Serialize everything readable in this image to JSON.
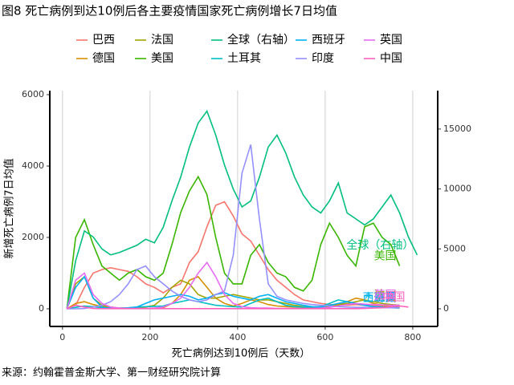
{
  "chart_data": {
    "type": "line",
    "title": "图8 死亡病例到达10例后各主要疫情国家死亡病例增长7日均值",
    "x_label": "死亡病例达到10例后（天数）",
    "y_label": "新增死亡病例7日均值",
    "source": "来源：约翰霍普金斯大学、第一财经研究院计算",
    "x": [
      10,
      30,
      50,
      70,
      90,
      110,
      130,
      150,
      170,
      190,
      210,
      230,
      250,
      270,
      290,
      310,
      330,
      350,
      370,
      390,
      410,
      430,
      450,
      470,
      490,
      510,
      530,
      550,
      570,
      590,
      610,
      630,
      650,
      670,
      690,
      710,
      730,
      750,
      770,
      790,
      810
    ],
    "xlim": [
      -29,
      857
    ],
    "xticks": [
      0,
      200,
      400,
      600,
      800
    ],
    "ylim": [
      -494,
      6112
    ],
    "yticks": [
      0,
      2000,
      4000,
      6000
    ],
    "y2lim": [
      -1473,
      18206
    ],
    "y2ticks": [
      0,
      5000,
      10000,
      15000
    ],
    "grid": true,
    "series": [
      {
        "name": "巴西",
        "color": "#F8766D",
        "values": [
          0,
          100,
          600,
          1000,
          1100,
          1150,
          1100,
          1050,
          900,
          700,
          600,
          450,
          600,
          700,
          1300,
          1600,
          2300,
          2900,
          3000,
          2600,
          2100,
          1900,
          1500,
          1100,
          800,
          600,
          400,
          250,
          200,
          150,
          120,
          100,
          100,
          120,
          100,
          90,
          80,
          60,
          50,
          null,
          null
        ]
      },
      {
        "name": "德国",
        "color": "#D89000",
        "values": [
          0,
          150,
          200,
          120,
          60,
          30,
          15,
          10,
          10,
          10,
          10,
          30,
          150,
          400,
          800,
          900,
          600,
          300,
          150,
          80,
          150,
          250,
          200,
          120,
          80,
          60,
          50,
          40,
          40,
          60,
          80,
          120,
          200,
          300,
          250,
          150,
          100,
          80,
          60,
          null,
          null
        ]
      },
      {
        "name": "法国",
        "color": "#A3A500",
        "values": [
          0,
          700,
          900,
          300,
          100,
          50,
          20,
          20,
          30,
          50,
          100,
          300,
          600,
          800,
          700,
          400,
          300,
          300,
          350,
          400,
          350,
          300,
          250,
          250,
          200,
          150,
          100,
          60,
          30,
          30,
          60,
          100,
          150,
          200,
          250,
          200,
          150,
          120,
          100,
          null,
          null
        ]
      },
      {
        "name": "美国",
        "color": "#39B600",
        "values": [
          0,
          2000,
          2500,
          1800,
          1200,
          1000,
          800,
          1000,
          1100,
          900,
          800,
          1000,
          1800,
          2700,
          3300,
          3700,
          3200,
          2000,
          1000,
          700,
          700,
          1500,
          1800,
          1300,
          1000,
          900,
          600,
          500,
          800,
          1800,
          2400,
          2000,
          1500,
          1200,
          2300,
          2400,
          2000,
          1800,
          1200,
          null,
          null
        ]
      },
      {
        "name": "全球（右轴）",
        "color": "#00BF7D",
        "axis": "y2",
        "values": [
          0,
          4000,
          6500,
          6000,
          5000,
          4500,
          4700,
          5000,
          5300,
          5800,
          5500,
          6800,
          9000,
          11000,
          13500,
          15500,
          16500,
          14500,
          12000,
          10000,
          8500,
          9000,
          11000,
          13500,
          14500,
          13000,
          11000,
          9500,
          8500,
          8000,
          9000,
          10500,
          8000,
          7500,
          7000,
          7500,
          8500,
          9500,
          8000,
          6000,
          4500
        ]
      },
      {
        "name": "土耳其",
        "color": "#00BFC4",
        "values": [
          0,
          40,
          80,
          60,
          30,
          20,
          20,
          30,
          50,
          60,
          70,
          80,
          150,
          200,
          250,
          200,
          150,
          100,
          80,
          60,
          50,
          150,
          250,
          300,
          200,
          100,
          60,
          50,
          50,
          60,
          150,
          250,
          200,
          150,
          100,
          60,
          40,
          30,
          20,
          null,
          null
        ]
      },
      {
        "name": "西班牙",
        "color": "#00B0F6",
        "values": [
          0,
          600,
          900,
          300,
          50,
          10,
          10,
          20,
          50,
          150,
          250,
          300,
          350,
          400,
          350,
          250,
          300,
          400,
          450,
          350,
          300,
          250,
          350,
          400,
          300,
          200,
          150,
          100,
          60,
          50,
          100,
          150,
          200,
          150,
          100,
          60,
          50,
          40,
          30,
          null,
          null
        ]
      },
      {
        "name": "印度",
        "color": "#9590FF",
        "values": [
          0,
          0,
          10,
          50,
          100,
          200,
          400,
          700,
          1100,
          1200,
          900,
          700,
          500,
          350,
          250,
          200,
          250,
          400,
          500,
          1500,
          3800,
          4600,
          2500,
          700,
          350,
          250,
          200,
          150,
          120,
          100,
          80,
          60,
          50,
          40,
          40,
          30,
          30,
          30,
          30,
          null,
          null
        ]
      },
      {
        "name": "英国",
        "color": "#E76BF3",
        "values": [
          0,
          800,
          1000,
          400,
          150,
          50,
          20,
          10,
          10,
          10,
          20,
          50,
          150,
          300,
          600,
          1000,
          1300,
          900,
          400,
          150,
          60,
          30,
          20,
          20,
          10,
          10,
          10,
          10,
          10,
          20,
          40,
          80,
          120,
          150,
          130,
          120,
          110,
          100,
          100,
          null,
          null
        ]
      },
      {
        "name": "中国",
        "color": "#FF62BC",
        "values": [
          0,
          100,
          50,
          10,
          5,
          5,
          5,
          5,
          5,
          5,
          5,
          5,
          5,
          5,
          5,
          5,
          5,
          5,
          5,
          5,
          5,
          5,
          5,
          5,
          5,
          5,
          5,
          5,
          5,
          5,
          5,
          5,
          5,
          5,
          10,
          20,
          30,
          60,
          80,
          50,
          null
        ]
      }
    ]
  }
}
